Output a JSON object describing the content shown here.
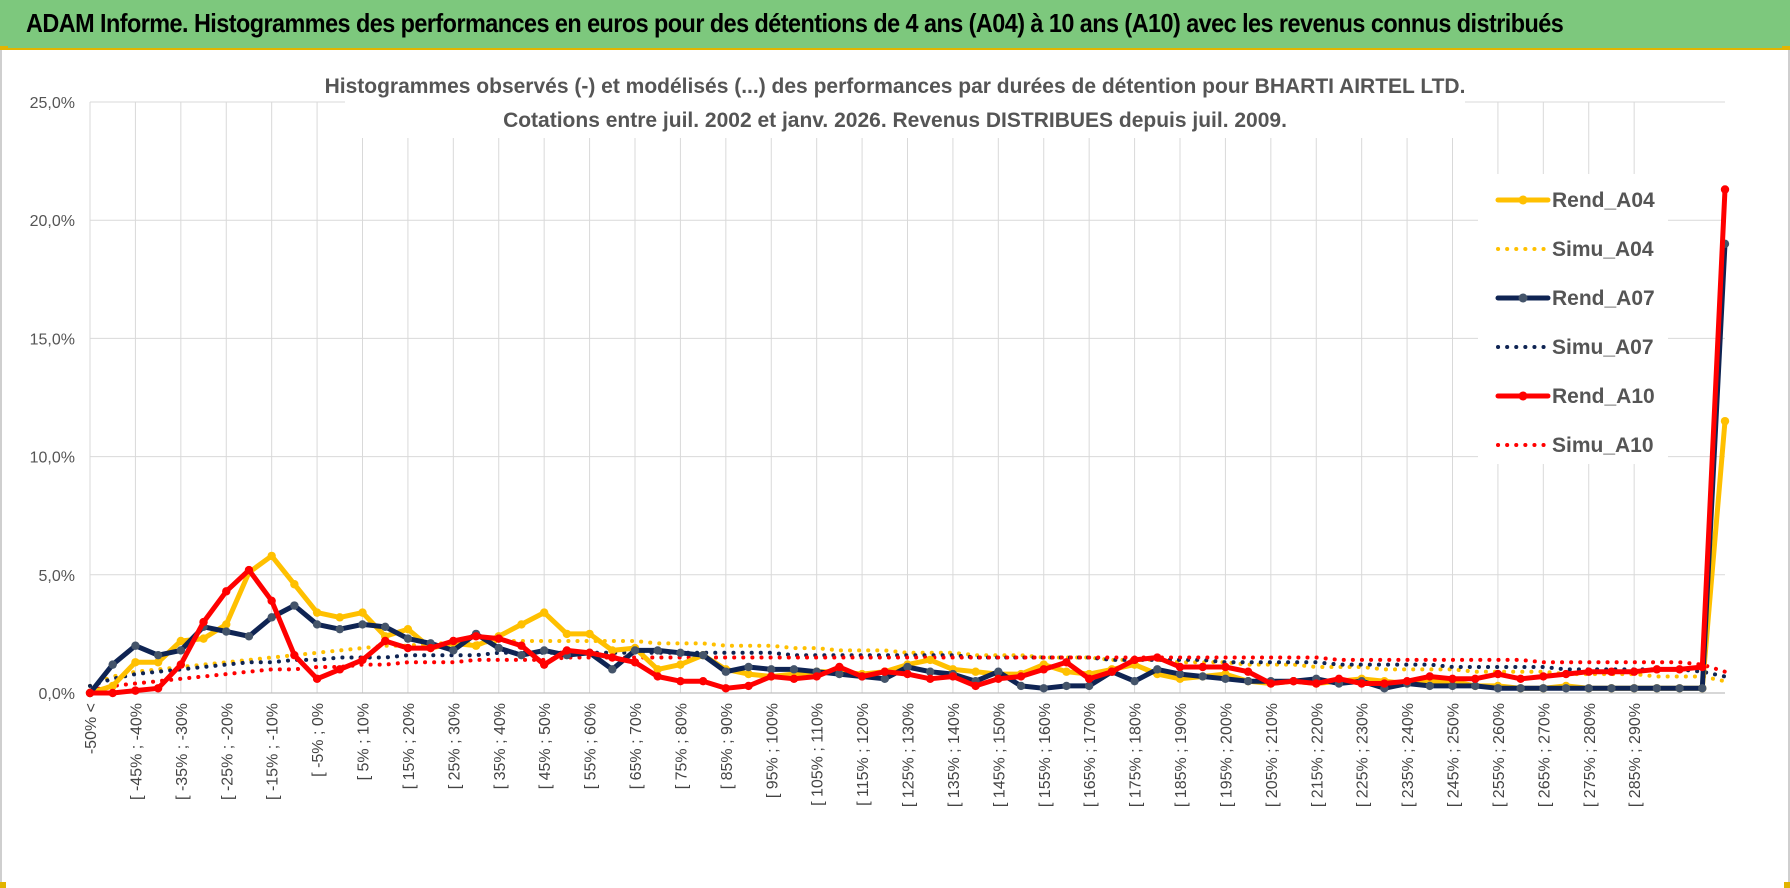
{
  "banner": {
    "title": "ADAM Informe. Histogrammes des performances en euros pour des détentions de 4 ans (A04) à 10 ans (A10) avec les revenus connus distribués"
  },
  "chart_data": {
    "type": "line",
    "title_lines": [
      "Histogrammes observés (-) et modélisés (...) des performances par durées de détention pour BHARTI AIRTEL LTD.",
      "Cotations entre juil. 2002 et janv. 2026. Revenus DISTRIBUES depuis juil. 2009."
    ],
    "xlabel": "",
    "ylabel": "",
    "ylim": [
      0,
      25
    ],
    "y_ticks": [
      "0,0%",
      "5,0%",
      "10,0%",
      "15,0%",
      "20,0%",
      "25,0%"
    ],
    "grid": true,
    "legend_position": "right",
    "x_tick_labels": [
      "-50% <",
      "[ -45% ; -40%",
      "[ -35% ; -30%",
      "[ -25% ; -20%",
      "[ -15% ; -10%",
      "[ -5% ; 0%",
      "[ 5% ; 10%",
      "[ 15% ; 20%",
      "[ 25% ; 30%",
      "[ 35% ; 40%",
      "[ 45% ; 50%",
      "[ 55% ; 60%",
      "[ 65% ; 70%",
      "[ 75% ; 80%",
      "[ 85% ; 90%",
      "[ 95% ; 100%",
      "[ 105% ; 110%",
      "[ 115% ; 120%",
      "[ 125% ; 130%",
      "[ 135% ; 140%",
      "[ 145% ; 150%",
      "[ 155% ; 160%",
      "[ 165% ; 170%",
      "[ 175% ; 180%",
      "[ 185% ; 190%",
      "[ 195% ; 200%",
      "[ 205% ; 210%",
      "[ 215% ; 220%",
      "[ 225% ; 230%",
      "[ 235% ; 240%",
      "[ 245% ; 250%",
      "[ 255% ; 260%",
      "[ 265% ; 270%",
      "[ 275% ; 280%",
      "[ 285% ; 290%"
    ],
    "series": [
      {
        "name": "Rend_A04",
        "style": "solid",
        "markers": true,
        "color": "#ffc000",
        "values": [
          0.0,
          0.3,
          1.3,
          1.3,
          2.2,
          2.3,
          2.9,
          5.1,
          5.8,
          4.6,
          3.4,
          3.2,
          3.4,
          2.4,
          2.7,
          1.9,
          2.1,
          2.0,
          2.4,
          2.9,
          3.4,
          2.5,
          2.5,
          1.8,
          1.9,
          1.0,
          1.2,
          1.6,
          1.0,
          0.8,
          0.7,
          0.8,
          0.9,
          0.9,
          0.8,
          0.9,
          1.2,
          1.4,
          1.0,
          0.9,
          0.8,
          0.8,
          1.2,
          0.9,
          0.8,
          1.0,
          1.2,
          0.8,
          0.6,
          0.7,
          0.8,
          0.5,
          0.4,
          0.5,
          0.4,
          0.5,
          0.6,
          0.5,
          0.4,
          0.5,
          0.5,
          0.3,
          0.3,
          0.2,
          0.2,
          0.3,
          0.2,
          0.2,
          0.2,
          0.2,
          0.2,
          0.2,
          11.5
        ]
      },
      {
        "name": "Simu_A04",
        "style": "dotted",
        "markers": false,
        "color": "#ffc000",
        "values": [
          0.3,
          0.7,
          0.9,
          1.0,
          1.1,
          1.2,
          1.3,
          1.4,
          1.5,
          1.6,
          1.7,
          1.8,
          1.9,
          2.0,
          2.0,
          2.1,
          2.1,
          2.1,
          2.2,
          2.2,
          2.2,
          2.2,
          2.2,
          2.2,
          2.2,
          2.1,
          2.1,
          2.1,
          2.0,
          2.0,
          2.0,
          1.9,
          1.9,
          1.8,
          1.8,
          1.8,
          1.7,
          1.7,
          1.7,
          1.6,
          1.6,
          1.6,
          1.5,
          1.5,
          1.5,
          1.4,
          1.4,
          1.4,
          1.3,
          1.3,
          1.3,
          1.2,
          1.2,
          1.2,
          1.1,
          1.1,
          1.1,
          1.0,
          1.0,
          1.0,
          1.0,
          0.9,
          0.9,
          0.9,
          0.9,
          0.8,
          0.8,
          0.8,
          0.8,
          0.7,
          0.7,
          0.7,
          0.5
        ]
      },
      {
        "name": "Rend_A07",
        "style": "solid",
        "markers": true,
        "color": "#0f2453",
        "values": [
          0.0,
          1.2,
          2.0,
          1.6,
          1.8,
          2.8,
          2.6,
          2.4,
          3.2,
          3.7,
          2.9,
          2.7,
          2.9,
          2.8,
          2.3,
          2.1,
          1.8,
          2.5,
          1.9,
          1.6,
          1.8,
          1.6,
          1.7,
          1.0,
          1.8,
          1.8,
          1.7,
          1.6,
          0.9,
          1.1,
          1.0,
          1.0,
          0.9,
          0.8,
          0.7,
          0.6,
          1.1,
          0.9,
          0.8,
          0.5,
          0.9,
          0.3,
          0.2,
          0.3,
          0.3,
          0.9,
          0.5,
          1.0,
          0.8,
          0.7,
          0.6,
          0.5,
          0.5,
          0.5,
          0.6,
          0.4,
          0.5,
          0.2,
          0.4,
          0.3,
          0.3,
          0.3,
          0.2,
          0.2,
          0.2,
          0.2,
          0.2,
          0.2,
          0.2,
          0.2,
          0.2,
          0.2,
          19.0
        ]
      },
      {
        "name": "Simu_A07",
        "style": "dotted",
        "markers": false,
        "color": "#0f2453",
        "values": [
          0.3,
          0.6,
          0.8,
          0.9,
          1.0,
          1.1,
          1.2,
          1.3,
          1.3,
          1.4,
          1.4,
          1.5,
          1.5,
          1.5,
          1.6,
          1.6,
          1.6,
          1.6,
          1.7,
          1.7,
          1.7,
          1.7,
          1.7,
          1.7,
          1.7,
          1.7,
          1.7,
          1.7,
          1.7,
          1.7,
          1.7,
          1.6,
          1.6,
          1.6,
          1.6,
          1.6,
          1.6,
          1.6,
          1.6,
          1.5,
          1.5,
          1.5,
          1.5,
          1.5,
          1.5,
          1.4,
          1.4,
          1.4,
          1.4,
          1.4,
          1.3,
          1.3,
          1.3,
          1.3,
          1.3,
          1.2,
          1.2,
          1.2,
          1.2,
          1.2,
          1.1,
          1.1,
          1.1,
          1.1,
          1.1,
          1.0,
          1.0,
          1.0,
          1.0,
          1.0,
          1.0,
          0.9,
          0.7
        ]
      },
      {
        "name": "Rend_A10",
        "style": "solid",
        "markers": true,
        "color": "#ff0000",
        "values": [
          0.0,
          0.0,
          0.1,
          0.2,
          1.2,
          3.0,
          4.3,
          5.2,
          3.9,
          1.6,
          0.6,
          1.0,
          1.4,
          2.2,
          1.9,
          1.9,
          2.2,
          2.4,
          2.3,
          2.0,
          1.2,
          1.8,
          1.7,
          1.5,
          1.3,
          0.7,
          0.5,
          0.5,
          0.2,
          0.3,
          0.7,
          0.6,
          0.7,
          1.1,
          0.7,
          0.9,
          0.8,
          0.6,
          0.7,
          0.3,
          0.6,
          0.7,
          1.0,
          1.3,
          0.6,
          0.9,
          1.4,
          1.5,
          1.1,
          1.1,
          1.1,
          0.9,
          0.4,
          0.5,
          0.4,
          0.6,
          0.4,
          0.4,
          0.5,
          0.7,
          0.6,
          0.6,
          0.8,
          0.6,
          0.7,
          0.8,
          0.9,
          0.9,
          0.9,
          1.0,
          1.0,
          1.1,
          21.3
        ]
      },
      {
        "name": "Simu_A10",
        "style": "dotted",
        "markers": false,
        "color": "#ff0000",
        "values": [
          0.1,
          0.3,
          0.4,
          0.5,
          0.6,
          0.7,
          0.8,
          0.9,
          1.0,
          1.0,
          1.1,
          1.1,
          1.2,
          1.2,
          1.3,
          1.3,
          1.3,
          1.4,
          1.4,
          1.4,
          1.4,
          1.5,
          1.5,
          1.5,
          1.5,
          1.5,
          1.5,
          1.5,
          1.5,
          1.5,
          1.5,
          1.5,
          1.5,
          1.5,
          1.5,
          1.5,
          1.5,
          1.5,
          1.5,
          1.5,
          1.5,
          1.5,
          1.5,
          1.5,
          1.5,
          1.5,
          1.5,
          1.5,
          1.5,
          1.5,
          1.5,
          1.5,
          1.5,
          1.5,
          1.5,
          1.4,
          1.4,
          1.4,
          1.4,
          1.4,
          1.4,
          1.4,
          1.4,
          1.4,
          1.3,
          1.3,
          1.3,
          1.3,
          1.3,
          1.3,
          1.3,
          1.2,
          0.9
        ]
      }
    ]
  }
}
